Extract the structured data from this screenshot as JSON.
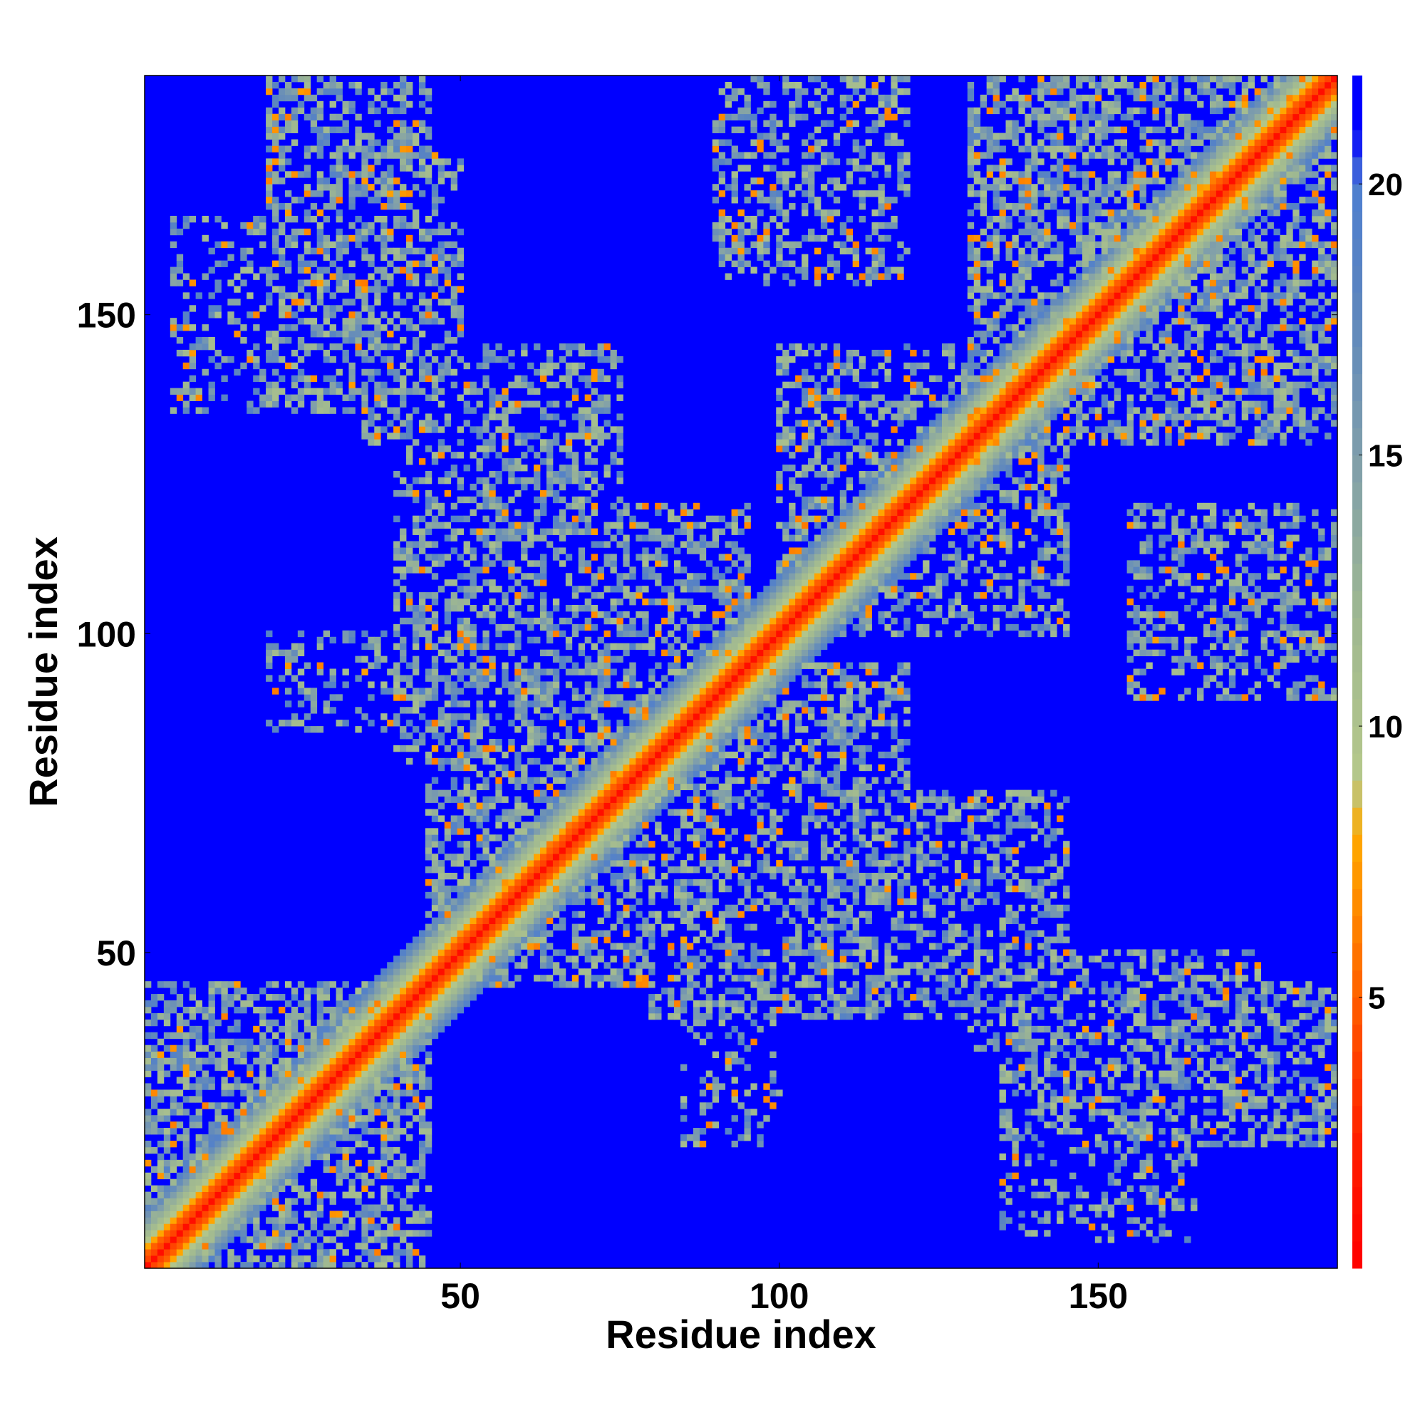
{
  "chart_data": {
    "type": "heatmap",
    "description_values": "Residue-residue distance map; values in colorbar units",
    "xlabel": "Residue index",
    "ylabel": "Residue index",
    "xlim": [
      1,
      187
    ],
    "ylim": [
      1,
      187
    ],
    "x_ticks": [
      50,
      100,
      150
    ],
    "y_ticks": [
      50,
      100,
      150
    ],
    "colorbar": {
      "range": [
        0,
        22
      ],
      "ticks": [
        5,
        10,
        15,
        20
      ],
      "stops": [
        {
          "value": 0,
          "color": "#ff0000"
        },
        {
          "value": 2,
          "color": "#ff1a00"
        },
        {
          "value": 4,
          "color": "#ff4400"
        },
        {
          "value": 6,
          "color": "#ff7a00"
        },
        {
          "value": 8,
          "color": "#ffaa00"
        },
        {
          "value": 9,
          "color": "#b5c88a"
        },
        {
          "value": 12,
          "color": "#9fb891"
        },
        {
          "value": 15,
          "color": "#7f9eab"
        },
        {
          "value": 18,
          "color": "#5a84c0"
        },
        {
          "value": 20,
          "color": "#4f7fd0"
        },
        {
          "value": 21,
          "color": "#0000ff"
        }
      ]
    },
    "contact_blocks": [
      {
        "x": [
          1,
          45
        ],
        "y": [
          1,
          45
        ],
        "strength": 0.55
      },
      {
        "x": [
          20,
          45
        ],
        "y": [
          135,
          187
        ],
        "strength": 0.5
      },
      {
        "x": [
          40,
          75
        ],
        "y": [
          110,
          145
        ],
        "strength": 0.45
      },
      {
        "x": [
          45,
          80
        ],
        "y": [
          50,
          80
        ],
        "strength": 0.5
      },
      {
        "x": [
          80,
          120
        ],
        "y": [
          40,
          95
        ],
        "strength": 0.5
      },
      {
        "x": [
          90,
          120
        ],
        "y": [
          155,
          187
        ],
        "strength": 0.4
      },
      {
        "x": [
          100,
          135
        ],
        "y": [
          110,
          145
        ],
        "strength": 0.45
      },
      {
        "x": [
          130,
          187
        ],
        "y": [
          130,
          187
        ],
        "strength": 0.55
      },
      {
        "x": [
          130,
          175
        ],
        "y": [
          35,
          50
        ],
        "strength": 0.45
      },
      {
        "x": [
          155,
          187
        ],
        "y": [
          90,
          120
        ],
        "strength": 0.4
      },
      {
        "x": [
          20,
          40
        ],
        "y": [
          85,
          100
        ],
        "strength": 0.3
      },
      {
        "x": [
          85,
          100
        ],
        "y": [
          20,
          35
        ],
        "strength": 0.3
      },
      {
        "x": [
          155,
          165
        ],
        "y": [
          5,
          45
        ],
        "strength": 0.35
      },
      {
        "x": [
          5,
          25
        ],
        "y": [
          135,
          160
        ],
        "strength": 0.3
      }
    ]
  }
}
